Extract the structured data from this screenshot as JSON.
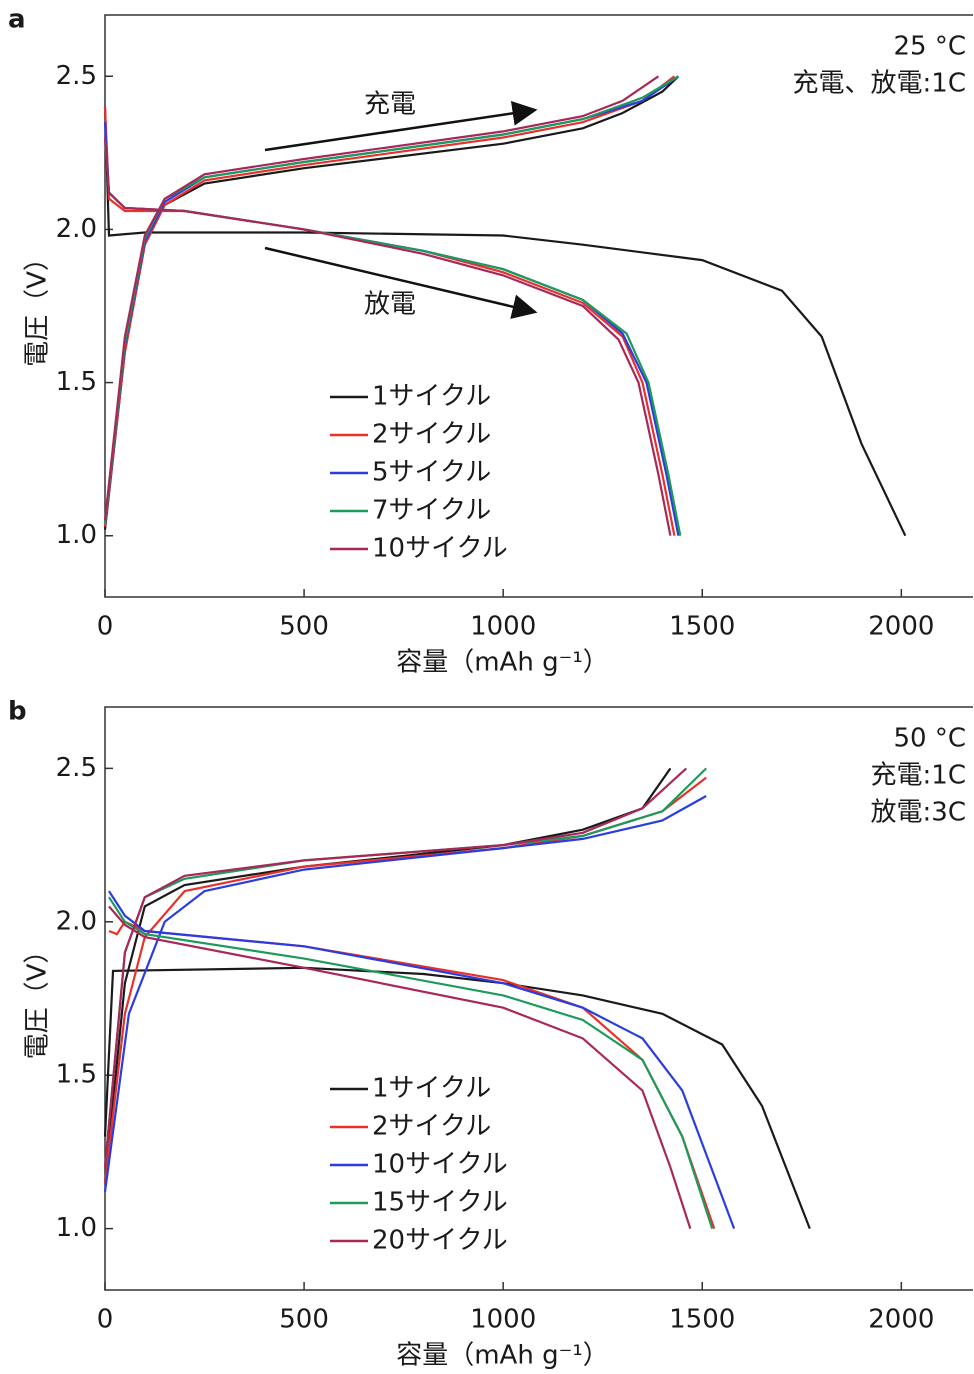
{
  "chart_data": [
    {
      "type": "line",
      "panel_label": "a",
      "conditions": [
        "25 °C",
        "充電、放電:1C"
      ],
      "arrow_labels": [
        "充電",
        "放電"
      ],
      "xlabel": "容量（mAh g⁻¹）",
      "ylabel": "電圧（V）",
      "xlim": [
        0,
        2180
      ],
      "ylim": [
        0.8,
        2.7
      ],
      "xticks": [
        0,
        500,
        1000,
        1500,
        2000
      ],
      "yticks": [
        {
          "value": 1,
          "label": "1.0"
        },
        1.5,
        {
          "value": 2,
          "label": "2.0"
        },
        2.5
      ],
      "series": [
        {
          "name": "1サイクル",
          "color": "#1a1a1a",
          "x": [
            0,
            10,
            100,
            500,
            1000,
            1200,
            1500,
            1700,
            1800,
            1900,
            2010,
            null,
            0,
            50,
            100,
            150,
            250,
            500,
            1000,
            1200,
            1300,
            1400,
            1440
          ],
          "values": [
            2.4,
            1.98,
            1.99,
            1.99,
            1.98,
            1.95,
            1.9,
            1.8,
            1.65,
            1.3,
            1.0,
            null,
            1.02,
            1.6,
            1.95,
            2.08,
            2.15,
            2.2,
            2.28,
            2.33,
            2.38,
            2.45,
            2.5
          ]
        },
        {
          "name": "2サイクル",
          "color": "#e8312a",
          "x": [
            0,
            10,
            50,
            200,
            500,
            800,
            1000,
            1200,
            1300,
            1350,
            1400,
            1430,
            null,
            0,
            50,
            100,
            150,
            250,
            500,
            1000,
            1200,
            1350,
            1430
          ],
          "values": [
            2.4,
            2.1,
            2.06,
            2.06,
            2.0,
            1.93,
            1.86,
            1.76,
            1.65,
            1.5,
            1.2,
            1.0,
            null,
            1.03,
            1.6,
            1.95,
            2.08,
            2.16,
            2.21,
            2.3,
            2.35,
            2.42,
            2.5
          ]
        },
        {
          "name": "5サイクル",
          "color": "#2b3de0",
          "x": [
            0,
            10,
            50,
            200,
            500,
            800,
            1000,
            1200,
            1300,
            1360,
            1410,
            1440,
            null,
            0,
            50,
            100,
            150,
            250,
            500,
            1000,
            1200,
            1350,
            1440
          ],
          "values": [
            2.35,
            2.12,
            2.07,
            2.06,
            2.0,
            1.93,
            1.87,
            1.77,
            1.66,
            1.5,
            1.2,
            1.0,
            null,
            1.04,
            1.62,
            1.96,
            2.09,
            2.17,
            2.22,
            2.31,
            2.36,
            2.42,
            2.5
          ]
        },
        {
          "name": "7サイクル",
          "color": "#1e9a5a",
          "x": [
            0,
            10,
            50,
            200,
            500,
            800,
            1000,
            1200,
            1310,
            1365,
            1415,
            1445,
            null,
            0,
            50,
            100,
            150,
            250,
            500,
            1000,
            1200,
            1350,
            1440
          ],
          "values": [
            2.3,
            2.12,
            2.07,
            2.06,
            2.0,
            1.93,
            1.87,
            1.77,
            1.66,
            1.5,
            1.2,
            1.0,
            null,
            1.04,
            1.63,
            1.97,
            2.1,
            2.17,
            2.22,
            2.31,
            2.36,
            2.43,
            2.5
          ]
        },
        {
          "name": "10サイクル",
          "color": "#a8285a",
          "x": [
            0,
            10,
            50,
            200,
            500,
            800,
            1000,
            1200,
            1290,
            1340,
            1390,
            1420,
            null,
            0,
            50,
            100,
            150,
            250,
            500,
            1000,
            1200,
            1300,
            1390
          ],
          "values": [
            2.3,
            2.12,
            2.07,
            2.06,
            2.0,
            1.92,
            1.85,
            1.75,
            1.64,
            1.5,
            1.2,
            1.0,
            null,
            1.05,
            1.65,
            1.98,
            2.1,
            2.18,
            2.23,
            2.32,
            2.37,
            2.42,
            2.5
          ]
        }
      ]
    },
    {
      "type": "line",
      "panel_label": "b",
      "conditions": [
        "50 °C",
        "充電:1C",
        "放電:3C"
      ],
      "xlabel": "容量（mAh g⁻¹）",
      "ylabel": "電圧（V）",
      "xlim": [
        0,
        2180
      ],
      "ylim": [
        0.8,
        2.7
      ],
      "xticks": [
        0,
        500,
        1000,
        1500,
        2000
      ],
      "yticks": [
        {
          "value": 1,
          "label": "1.0"
        },
        1.5,
        {
          "value": 2,
          "label": "2.0"
        },
        2.5
      ],
      "series": [
        {
          "name": "1サイクル",
          "color": "#1a1a1a",
          "x": [
            0,
            20,
            500,
            800,
            1000,
            1200,
            1400,
            1550,
            1650,
            1770,
            null,
            0,
            50,
            100,
            200,
            500,
            1000,
            1200,
            1350,
            1420
          ],
          "values": [
            1.3,
            1.84,
            1.85,
            1.83,
            1.8,
            1.76,
            1.7,
            1.6,
            1.4,
            1.0,
            null,
            1.15,
            1.8,
            2.05,
            2.12,
            2.18,
            2.25,
            2.3,
            2.37,
            2.5
          ]
        },
        {
          "name": "2サイクル",
          "color": "#e8312a",
          "x": [
            10,
            30,
            50,
            100,
            500,
            1000,
            1200,
            1350,
            1450,
            1530,
            null,
            0,
            50,
            100,
            200,
            500,
            1000,
            1200,
            1400,
            1510
          ],
          "values": [
            1.97,
            1.96,
            2.0,
            1.97,
            1.92,
            1.81,
            1.72,
            1.55,
            1.3,
            1.0,
            null,
            1.15,
            1.7,
            1.95,
            2.1,
            2.18,
            2.24,
            2.28,
            2.36,
            2.47
          ]
        },
        {
          "name": "10サイクル",
          "color": "#2b3de0",
          "x": [
            10,
            50,
            100,
            500,
            1000,
            1200,
            1350,
            1450,
            1580,
            null,
            0,
            60,
            150,
            250,
            500,
            1000,
            1200,
            1400,
            1510
          ],
          "values": [
            2.1,
            2.02,
            1.97,
            1.92,
            1.8,
            1.72,
            1.62,
            1.45,
            1.0,
            null,
            1.12,
            1.7,
            2.0,
            2.1,
            2.17,
            2.24,
            2.27,
            2.33,
            2.41
          ]
        },
        {
          "name": "15サイクル",
          "color": "#1e9a5a",
          "x": [
            10,
            50,
            100,
            500,
            1000,
            1200,
            1350,
            1450,
            1525,
            null,
            0,
            50,
            100,
            200,
            500,
            1000,
            1200,
            1400,
            1510
          ],
          "values": [
            2.08,
            2.0,
            1.96,
            1.88,
            1.76,
            1.68,
            1.55,
            1.3,
            1.0,
            null,
            1.2,
            1.9,
            2.08,
            2.14,
            2.2,
            2.25,
            2.28,
            2.36,
            2.5
          ]
        },
        {
          "name": "20サイクル",
          "color": "#a8285a",
          "x": [
            10,
            50,
            100,
            500,
            1000,
            1200,
            1350,
            1420,
            1470,
            null,
            0,
            50,
            100,
            200,
            500,
            1000,
            1200,
            1350,
            1460
          ],
          "values": [
            2.05,
            1.99,
            1.95,
            1.85,
            1.72,
            1.62,
            1.45,
            1.2,
            1.0,
            null,
            1.2,
            1.9,
            2.08,
            2.15,
            2.2,
            2.25,
            2.29,
            2.37,
            2.5
          ]
        }
      ]
    }
  ]
}
